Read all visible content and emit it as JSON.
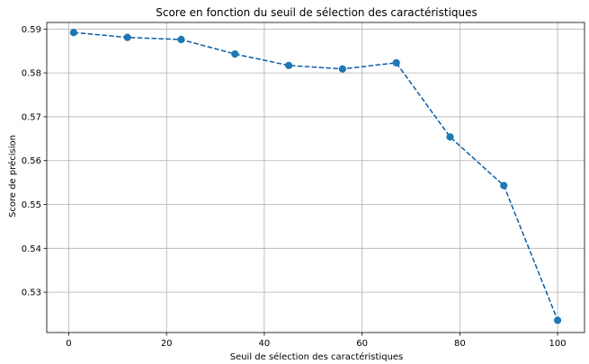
{
  "chart_data": {
    "type": "line",
    "title": "Score en fonction du seuil de sélection des caractéristiques",
    "xlabel": "Seuil de sélection des caractéristiques",
    "ylabel": "Score de précision",
    "xlim": [
      -4.5,
      105.5
    ],
    "ylim": [
      0.5208,
      0.5915
    ],
    "xticks": [
      0,
      20,
      40,
      60,
      80,
      100
    ],
    "yticks": [
      0.53,
      0.54,
      0.55,
      0.56,
      0.57,
      0.58,
      0.59
    ],
    "ytick_labels": [
      "0.53",
      "0.54",
      "0.55",
      "0.56",
      "0.57",
      "0.58",
      "0.59"
    ],
    "grid": true,
    "series": [
      {
        "color": "#1f77b4",
        "line_color": "#0b5ea8",
        "line_style": "dashed",
        "marker": "circle",
        "x": [
          1,
          12,
          23,
          34,
          45,
          56,
          67,
          78,
          89,
          100
        ],
        "y": [
          0.5892,
          0.5881,
          0.5876,
          0.5843,
          0.5817,
          0.5809,
          0.5823,
          0.5654,
          0.5543,
          0.5236
        ]
      }
    ]
  }
}
